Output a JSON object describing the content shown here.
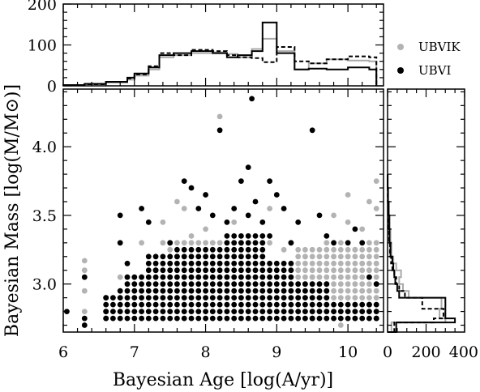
{
  "chart_data": {
    "type": "scatter",
    "xlabel": "Bayesian Age [log(A/yr)]",
    "ylabel": "Bayesian Mass [log(M/M⊙)]",
    "xlim": [
      6,
      10.5
    ],
    "ylim": [
      2.65,
      4.42
    ],
    "x_ticks": [
      "6",
      "7",
      "8",
      "9",
      "10"
    ],
    "y_ticks": [
      "3.0",
      "3.5",
      "4.0"
    ],
    "legend_position": "top-right",
    "colors": {
      "UBVIK": "#b3b3b3",
      "UBVI": "#000000"
    },
    "series": [
      {
        "name": "UBVIK",
        "color": "#b3b3b3",
        "points": [
          [
            6.3,
            3.17
          ],
          [
            6.3,
            3.1
          ],
          [
            6.3,
            2.95
          ],
          [
            6.3,
            2.8
          ],
          [
            6.8,
            3.05
          ],
          [
            7.1,
            3.3
          ],
          [
            7.4,
            3.45
          ],
          [
            7.5,
            3.25
          ],
          [
            7.6,
            3.6
          ],
          [
            7.7,
            3.55
          ],
          [
            7.8,
            3.35
          ],
          [
            7.9,
            3.1
          ],
          [
            8.0,
            3.4
          ],
          [
            8.1,
            3.3
          ],
          [
            8.2,
            4.22
          ],
          [
            8.3,
            3.25
          ],
          [
            8.4,
            3.45
          ],
          [
            8.5,
            3.3
          ],
          [
            8.6,
            3.35
          ],
          [
            8.7,
            3.0
          ],
          [
            8.8,
            3.2
          ],
          [
            8.9,
            3.55
          ],
          [
            9.0,
            3.1
          ],
          [
            9.1,
            3.25
          ],
          [
            9.2,
            3.3
          ],
          [
            9.3,
            3.1
          ],
          [
            9.4,
            3.2
          ],
          [
            9.5,
            3.05
          ],
          [
            9.6,
            3.15
          ],
          [
            9.7,
            3.3
          ],
          [
            9.7,
            3.0
          ],
          [
            9.8,
            3.2
          ],
          [
            9.8,
            3.5
          ],
          [
            9.9,
            3.3
          ],
          [
            9.9,
            3.05
          ],
          [
            10.0,
            3.65
          ],
          [
            10.0,
            3.45
          ],
          [
            10.0,
            3.2
          ],
          [
            10.0,
            2.9
          ],
          [
            10.1,
            3.25
          ],
          [
            10.1,
            3.05
          ],
          [
            10.2,
            3.4
          ],
          [
            10.2,
            3.15
          ],
          [
            10.2,
            2.95
          ],
          [
            10.3,
            3.6
          ],
          [
            10.3,
            3.3
          ],
          [
            10.3,
            3.1
          ],
          [
            10.4,
            3.75
          ],
          [
            10.4,
            3.55
          ],
          [
            10.4,
            3.3
          ],
          [
            10.4,
            3.15
          ],
          [
            10.4,
            2.9
          ],
          [
            10.4,
            2.75
          ],
          [
            8.3,
            3.05
          ],
          [
            8.6,
            2.9
          ],
          [
            9.2,
            2.85
          ],
          [
            9.6,
            2.95
          ],
          [
            10.1,
            2.85
          ],
          [
            9.9,
            2.7
          ]
        ]
      },
      {
        "name": "UBVI",
        "color": "#000000",
        "points": [
          [
            6.05,
            2.8
          ],
          [
            6.3,
            3.05
          ],
          [
            6.3,
            2.75
          ],
          [
            6.3,
            2.7
          ],
          [
            6.6,
            2.9
          ],
          [
            6.6,
            2.8
          ],
          [
            6.6,
            2.75
          ],
          [
            6.8,
            3.5
          ],
          [
            6.8,
            3.3
          ],
          [
            6.8,
            2.95
          ],
          [
            6.9,
            2.85
          ],
          [
            7.1,
            3.55
          ],
          [
            7.2,
            3.45
          ],
          [
            7.3,
            3.1
          ],
          [
            7.5,
            3.3
          ],
          [
            7.7,
            3.75
          ],
          [
            7.8,
            3.7
          ],
          [
            7.9,
            3.55
          ],
          [
            8.0,
            3.65
          ],
          [
            8.1,
            3.5
          ],
          [
            8.2,
            4.12
          ],
          [
            8.3,
            3.45
          ],
          [
            8.4,
            3.55
          ],
          [
            8.5,
            3.75
          ],
          [
            8.6,
            3.85
          ],
          [
            8.65,
            4.35
          ],
          [
            8.6,
            3.5
          ],
          [
            8.7,
            3.6
          ],
          [
            8.8,
            3.45
          ],
          [
            8.9,
            3.75
          ],
          [
            9.0,
            3.65
          ],
          [
            9.1,
            3.55
          ],
          [
            9.3,
            3.45
          ],
          [
            9.5,
            4.12
          ],
          [
            9.6,
            3.5
          ],
          [
            9.7,
            3.35
          ],
          [
            9.8,
            3.3
          ],
          [
            10.0,
            3.3
          ],
          [
            10.1,
            3.4
          ],
          [
            10.2,
            3.3
          ],
          [
            10.3,
            3.05
          ],
          [
            10.4,
            3.0
          ],
          [
            9.2,
            3.3
          ],
          [
            8.9,
            3.35
          ],
          [
            7.6,
            3.2
          ],
          [
            6.9,
            3.15
          ],
          [
            10.4,
            2.75
          ],
          [
            10.3,
            2.85
          ],
          [
            9.5,
            2.75
          ]
        ]
      }
    ],
    "top_histogram": {
      "ylim": [
        0,
        200
      ],
      "y_ticks": [
        "0",
        "100",
        "200"
      ],
      "bin_edges": [
        6.0,
        6.3,
        6.6,
        6.9,
        7.0,
        7.2,
        7.35,
        7.55,
        7.8,
        8.1,
        8.3,
        8.45,
        8.65,
        8.8,
        9.0,
        9.25,
        9.45,
        9.7,
        10.0,
        10.3,
        10.4
      ],
      "UBVI_solid": [
        2,
        5,
        10,
        20,
        30,
        45,
        75,
        80,
        85,
        80,
        70,
        75,
        85,
        155,
        80,
        40,
        42,
        40,
        45,
        40
      ],
      "UBVIK_gray": [
        2,
        4,
        8,
        15,
        25,
        40,
        70,
        75,
        80,
        82,
        78,
        70,
        90,
        115,
        85,
        40,
        55,
        65,
        62,
        60
      ],
      "dashed": [
        2,
        4,
        10,
        18,
        28,
        48,
        80,
        75,
        88,
        85,
        75,
        70,
        68,
        58,
        95,
        60,
        55,
        65,
        72,
        70
      ]
    },
    "right_histogram": {
      "xlim": [
        0,
        400
      ],
      "x_ticks": [
        "0",
        "200",
        "400"
      ],
      "bin_edges": [
        2.65,
        2.72,
        2.75,
        2.82,
        2.9,
        2.95,
        3.0,
        3.05,
        3.1,
        3.15,
        3.2,
        3.3,
        3.4,
        3.5,
        3.6,
        3.7,
        3.8
      ],
      "UBVI_solid": [
        45,
        350,
        300,
        300,
        60,
        50,
        40,
        35,
        30,
        25,
        15,
        10,
        8,
        5,
        2,
        0
      ],
      "UBVIK_gray": [
        20,
        300,
        270,
        280,
        110,
        80,
        60,
        70,
        45,
        30,
        20,
        15,
        12,
        8,
        4,
        2
      ],
      "dashed": [
        35,
        240,
        290,
        180,
        90,
        60,
        45,
        35,
        25,
        18,
        12,
        8,
        5,
        3,
        1,
        0
      ]
    }
  },
  "legend": {
    "items": [
      {
        "label": "UBVIK",
        "color": "#b3b3b3"
      },
      {
        "label": "UBVI",
        "color": "#000000"
      }
    ]
  }
}
